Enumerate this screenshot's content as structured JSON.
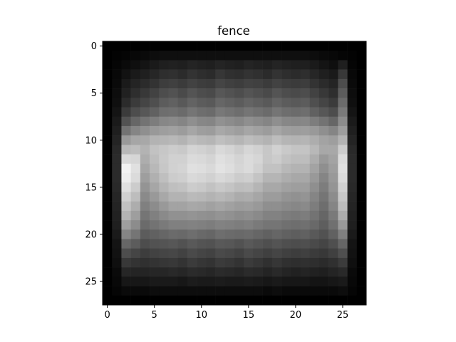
{
  "chart_data": {
    "type": "heatmap",
    "title": "fence",
    "colormap": "gray",
    "vmin": 0,
    "vmax": 1,
    "rows": 28,
    "cols": 28,
    "x_ticks": [
      0,
      5,
      10,
      15,
      20,
      25
    ],
    "y_ticks": [
      0,
      5,
      10,
      15,
      20,
      25
    ],
    "xlabel": "",
    "ylabel": "",
    "grid": false,
    "values": [
      [
        0.0,
        0.0,
        0.0,
        0.0,
        0.0,
        0.0,
        0.0,
        0.0,
        0.0,
        0.0,
        0.0,
        0.0,
        0.0,
        0.0,
        0.0,
        0.0,
        0.0,
        0.0,
        0.0,
        0.0,
        0.0,
        0.0,
        0.0,
        0.0,
        0.0,
        0.0,
        0.0,
        0.0
      ],
      [
        0.0,
        0.01,
        0.02,
        0.03,
        0.04,
        0.05,
        0.06,
        0.06,
        0.06,
        0.06,
        0.06,
        0.06,
        0.06,
        0.06,
        0.06,
        0.06,
        0.06,
        0.06,
        0.06,
        0.06,
        0.06,
        0.06,
        0.05,
        0.04,
        0.03,
        0.02,
        0.01,
        0.0
      ],
      [
        0.0,
        0.02,
        0.04,
        0.06,
        0.08,
        0.1,
        0.12,
        0.13,
        0.12,
        0.14,
        0.13,
        0.12,
        0.14,
        0.13,
        0.12,
        0.14,
        0.13,
        0.12,
        0.14,
        0.13,
        0.12,
        0.12,
        0.1,
        0.08,
        0.06,
        0.12,
        0.02,
        0.0
      ],
      [
        0.0,
        0.03,
        0.07,
        0.1,
        0.12,
        0.15,
        0.18,
        0.19,
        0.17,
        0.2,
        0.18,
        0.17,
        0.21,
        0.19,
        0.18,
        0.2,
        0.19,
        0.17,
        0.2,
        0.18,
        0.17,
        0.18,
        0.15,
        0.12,
        0.1,
        0.22,
        0.03,
        0.0
      ],
      [
        0.0,
        0.04,
        0.1,
        0.14,
        0.17,
        0.2,
        0.24,
        0.25,
        0.23,
        0.26,
        0.24,
        0.23,
        0.27,
        0.25,
        0.24,
        0.26,
        0.25,
        0.23,
        0.26,
        0.24,
        0.23,
        0.24,
        0.2,
        0.17,
        0.14,
        0.3,
        0.04,
        0.0
      ],
      [
        0.0,
        0.05,
        0.13,
        0.18,
        0.22,
        0.26,
        0.3,
        0.32,
        0.29,
        0.33,
        0.3,
        0.29,
        0.34,
        0.32,
        0.3,
        0.33,
        0.31,
        0.29,
        0.33,
        0.3,
        0.29,
        0.3,
        0.26,
        0.22,
        0.18,
        0.36,
        0.05,
        0.0
      ],
      [
        0.0,
        0.06,
        0.17,
        0.23,
        0.27,
        0.31,
        0.36,
        0.38,
        0.35,
        0.39,
        0.36,
        0.35,
        0.4,
        0.38,
        0.36,
        0.39,
        0.37,
        0.35,
        0.39,
        0.36,
        0.35,
        0.36,
        0.31,
        0.27,
        0.23,
        0.42,
        0.06,
        0.0
      ],
      [
        0.0,
        0.08,
        0.23,
        0.3,
        0.34,
        0.38,
        0.43,
        0.44,
        0.42,
        0.46,
        0.43,
        0.42,
        0.47,
        0.45,
        0.43,
        0.46,
        0.44,
        0.42,
        0.46,
        0.43,
        0.42,
        0.43,
        0.38,
        0.34,
        0.3,
        0.48,
        0.08,
        0.0
      ],
      [
        0.0,
        0.1,
        0.32,
        0.4,
        0.45,
        0.49,
        0.53,
        0.54,
        0.52,
        0.56,
        0.53,
        0.52,
        0.57,
        0.55,
        0.53,
        0.56,
        0.54,
        0.52,
        0.56,
        0.53,
        0.52,
        0.53,
        0.49,
        0.45,
        0.4,
        0.55,
        0.1,
        0.0
      ],
      [
        0.0,
        0.12,
        0.45,
        0.52,
        0.56,
        0.6,
        0.62,
        0.63,
        0.61,
        0.65,
        0.62,
        0.61,
        0.66,
        0.64,
        0.62,
        0.65,
        0.63,
        0.61,
        0.65,
        0.62,
        0.61,
        0.62,
        0.6,
        0.56,
        0.52,
        0.62,
        0.12,
        0.0
      ],
      [
        0.0,
        0.14,
        0.6,
        0.65,
        0.66,
        0.7,
        0.71,
        0.72,
        0.7,
        0.74,
        0.72,
        0.71,
        0.75,
        0.73,
        0.71,
        0.74,
        0.72,
        0.7,
        0.74,
        0.71,
        0.7,
        0.71,
        0.68,
        0.64,
        0.62,
        0.7,
        0.14,
        0.0
      ],
      [
        0.0,
        0.16,
        0.72,
        0.74,
        0.7,
        0.76,
        0.78,
        0.8,
        0.79,
        0.83,
        0.82,
        0.8,
        0.85,
        0.83,
        0.8,
        0.84,
        0.82,
        0.78,
        0.82,
        0.79,
        0.77,
        0.77,
        0.72,
        0.66,
        0.66,
        0.8,
        0.16,
        0.0
      ],
      [
        0.0,
        0.17,
        0.85,
        0.84,
        0.68,
        0.74,
        0.79,
        0.82,
        0.82,
        0.86,
        0.85,
        0.83,
        0.88,
        0.86,
        0.83,
        0.86,
        0.84,
        0.78,
        0.8,
        0.76,
        0.74,
        0.74,
        0.68,
        0.6,
        0.64,
        0.86,
        0.17,
        0.0
      ],
      [
        0.0,
        0.17,
        0.95,
        0.88,
        0.65,
        0.72,
        0.78,
        0.82,
        0.83,
        0.88,
        0.87,
        0.85,
        0.89,
        0.87,
        0.84,
        0.86,
        0.82,
        0.76,
        0.76,
        0.72,
        0.7,
        0.7,
        0.64,
        0.56,
        0.62,
        0.88,
        0.17,
        0.0
      ],
      [
        0.0,
        0.17,
        0.93,
        0.86,
        0.62,
        0.69,
        0.75,
        0.8,
        0.81,
        0.85,
        0.84,
        0.82,
        0.85,
        0.83,
        0.8,
        0.81,
        0.77,
        0.71,
        0.71,
        0.68,
        0.66,
        0.66,
        0.6,
        0.52,
        0.6,
        0.86,
        0.17,
        0.0
      ],
      [
        0.0,
        0.16,
        0.88,
        0.8,
        0.58,
        0.65,
        0.71,
        0.75,
        0.76,
        0.8,
        0.79,
        0.76,
        0.79,
        0.77,
        0.74,
        0.75,
        0.71,
        0.66,
        0.66,
        0.63,
        0.62,
        0.62,
        0.56,
        0.49,
        0.58,
        0.82,
        0.16,
        0.0
      ],
      [
        0.0,
        0.15,
        0.82,
        0.74,
        0.54,
        0.6,
        0.66,
        0.7,
        0.7,
        0.73,
        0.72,
        0.7,
        0.72,
        0.7,
        0.67,
        0.68,
        0.65,
        0.61,
        0.61,
        0.58,
        0.57,
        0.58,
        0.52,
        0.46,
        0.55,
        0.78,
        0.15,
        0.0
      ],
      [
        0.0,
        0.14,
        0.76,
        0.68,
        0.5,
        0.55,
        0.6,
        0.64,
        0.64,
        0.66,
        0.65,
        0.63,
        0.65,
        0.63,
        0.61,
        0.62,
        0.6,
        0.56,
        0.56,
        0.54,
        0.53,
        0.54,
        0.49,
        0.43,
        0.52,
        0.74,
        0.14,
        0.0
      ],
      [
        0.0,
        0.13,
        0.7,
        0.62,
        0.46,
        0.5,
        0.54,
        0.57,
        0.57,
        0.58,
        0.57,
        0.56,
        0.58,
        0.57,
        0.55,
        0.56,
        0.54,
        0.51,
        0.51,
        0.49,
        0.48,
        0.49,
        0.45,
        0.4,
        0.48,
        0.68,
        0.13,
        0.0
      ],
      [
        0.0,
        0.12,
        0.62,
        0.55,
        0.42,
        0.45,
        0.48,
        0.5,
        0.5,
        0.51,
        0.5,
        0.49,
        0.51,
        0.5,
        0.49,
        0.5,
        0.48,
        0.46,
        0.46,
        0.44,
        0.43,
        0.44,
        0.41,
        0.37,
        0.44,
        0.6,
        0.12,
        0.0
      ],
      [
        0.0,
        0.1,
        0.52,
        0.46,
        0.36,
        0.38,
        0.4,
        0.42,
        0.41,
        0.43,
        0.41,
        0.4,
        0.43,
        0.42,
        0.41,
        0.42,
        0.4,
        0.38,
        0.4,
        0.38,
        0.37,
        0.38,
        0.35,
        0.32,
        0.38,
        0.5,
        0.1,
        0.0
      ],
      [
        0.0,
        0.08,
        0.4,
        0.36,
        0.3,
        0.32,
        0.33,
        0.34,
        0.32,
        0.35,
        0.33,
        0.32,
        0.35,
        0.34,
        0.32,
        0.35,
        0.33,
        0.31,
        0.33,
        0.31,
        0.3,
        0.31,
        0.29,
        0.27,
        0.31,
        0.4,
        0.08,
        0.0
      ],
      [
        0.0,
        0.07,
        0.3,
        0.27,
        0.24,
        0.26,
        0.27,
        0.28,
        0.26,
        0.29,
        0.27,
        0.26,
        0.29,
        0.28,
        0.26,
        0.29,
        0.27,
        0.25,
        0.27,
        0.25,
        0.24,
        0.25,
        0.23,
        0.22,
        0.25,
        0.31,
        0.07,
        0.0
      ],
      [
        0.0,
        0.06,
        0.22,
        0.2,
        0.19,
        0.2,
        0.21,
        0.22,
        0.2,
        0.23,
        0.21,
        0.2,
        0.23,
        0.22,
        0.2,
        0.23,
        0.21,
        0.19,
        0.21,
        0.19,
        0.18,
        0.19,
        0.18,
        0.17,
        0.19,
        0.23,
        0.06,
        0.0
      ],
      [
        0.0,
        0.04,
        0.15,
        0.14,
        0.14,
        0.15,
        0.15,
        0.16,
        0.15,
        0.17,
        0.16,
        0.15,
        0.17,
        0.16,
        0.15,
        0.17,
        0.16,
        0.14,
        0.16,
        0.14,
        0.13,
        0.14,
        0.13,
        0.12,
        0.14,
        0.16,
        0.04,
        0.0
      ],
      [
        0.0,
        0.03,
        0.09,
        0.09,
        0.09,
        0.1,
        0.1,
        0.1,
        0.09,
        0.11,
        0.1,
        0.1,
        0.11,
        0.1,
        0.1,
        0.11,
        0.1,
        0.09,
        0.1,
        0.09,
        0.09,
        0.09,
        0.08,
        0.08,
        0.09,
        0.1,
        0.03,
        0.0
      ],
      [
        0.0,
        0.02,
        0.04,
        0.04,
        0.04,
        0.05,
        0.05,
        0.05,
        0.05,
        0.05,
        0.05,
        0.05,
        0.05,
        0.05,
        0.05,
        0.05,
        0.05,
        0.04,
        0.05,
        0.04,
        0.04,
        0.04,
        0.04,
        0.04,
        0.04,
        0.05,
        0.02,
        0.0
      ],
      [
        0.0,
        0.0,
        0.0,
        0.0,
        0.0,
        0.0,
        0.0,
        0.0,
        0.0,
        0.0,
        0.0,
        0.0,
        0.0,
        0.0,
        0.0,
        0.0,
        0.0,
        0.0,
        0.0,
        0.0,
        0.0,
        0.0,
        0.0,
        0.0,
        0.0,
        0.0,
        0.0,
        0.0
      ]
    ]
  }
}
